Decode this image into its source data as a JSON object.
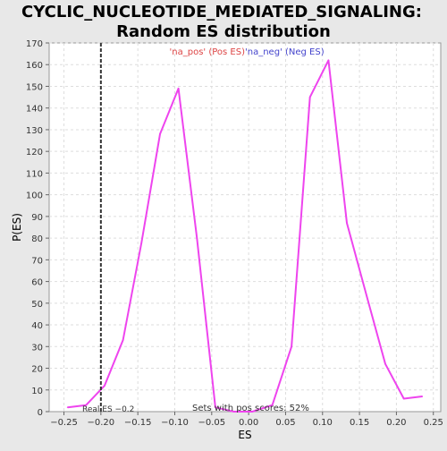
{
  "chart_data": {
    "type": "line",
    "title": "CYCLIC_NUCLEOTIDE_MEDIATED_SIGNALING:",
    "subtitle": "Random ES distribution",
    "xlabel": "ES",
    "ylabel": "P(ES)",
    "xlim": [
      -0.27,
      0.26
    ],
    "ylim": [
      0,
      170
    ],
    "xticks": [
      -0.25,
      -0.2,
      -0.15,
      -0.1,
      -0.05,
      0.0,
      0.05,
      0.1,
      0.15,
      0.2,
      0.25
    ],
    "xtick_labels": [
      "−0.25",
      "−0.20",
      "−0.15",
      "−0.10",
      "−0.05",
      "0.00",
      "0.05",
      "0.10",
      "0.15",
      "0.20",
      "0.25"
    ],
    "yticks": [
      0,
      10,
      20,
      30,
      40,
      50,
      60,
      70,
      80,
      90,
      100,
      110,
      120,
      130,
      140,
      150,
      160,
      170
    ],
    "grid": true,
    "series": [
      {
        "color": "#ee44ee",
        "x": [
          -0.245,
          -0.22,
          -0.195,
          -0.17,
          -0.145,
          -0.12,
          -0.095,
          -0.07,
          -0.045,
          -0.02,
          0.005,
          0.032,
          0.058,
          0.083,
          0.108,
          0.133,
          0.16,
          0.185,
          0.21,
          0.235
        ],
        "y": [
          2,
          3,
          12,
          33,
          78,
          128,
          149,
          80,
          2,
          0,
          0,
          3,
          30,
          145,
          162,
          87,
          53,
          22,
          6,
          7
        ]
      }
    ],
    "legend": [
      {
        "text": "'na_pos' (Pos ES)",
        "color": "#dd4444"
      },
      {
        "text": "'na_neg' (Neg ES)",
        "color": "#4444cc"
      }
    ],
    "real_es": -0.2,
    "real_es_label": "Real ES −0.2",
    "annotation": "Sets with pos scores: 52%"
  }
}
